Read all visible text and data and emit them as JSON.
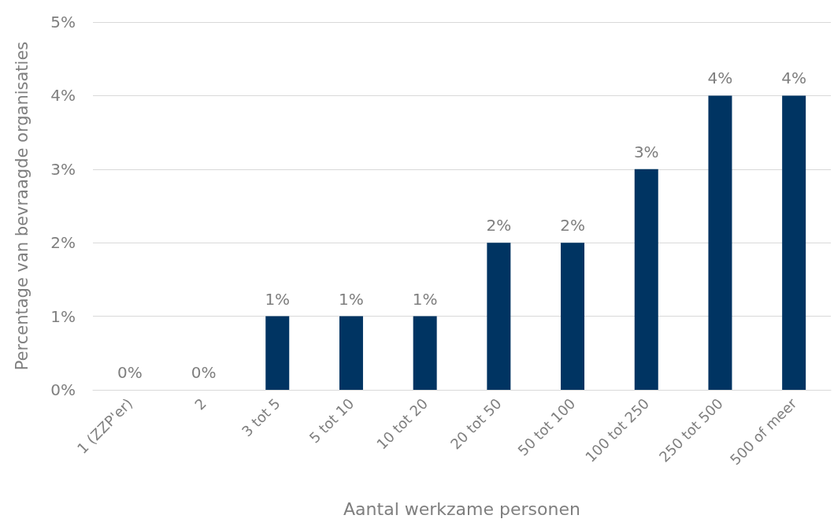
{
  "chart_data": {
    "type": "bar",
    "xlabel": "Aantal werkzame personen",
    "ylabel": "Percentage van bevraagde organisaties",
    "categories": [
      "1 (ZZP'er)",
      "2",
      "3 tot 5",
      "5 tot 10",
      "10 tot 20",
      "20 tot 50",
      "50 tot 100",
      "100 tot 250",
      "250 tot 500",
      "500 of meer"
    ],
    "values": [
      0,
      0,
      1,
      1,
      1,
      2,
      2,
      3,
      4,
      4
    ],
    "value_labels": [
      "0%",
      "0%",
      "1%",
      "1%",
      "1%",
      "2%",
      "2%",
      "3%",
      "4%",
      "4%"
    ],
    "color": "#003462",
    "ylim": [
      0,
      5
    ],
    "yticks": [
      {
        "value": 0,
        "label": "0%"
      },
      {
        "value": 1,
        "label": "1%"
      },
      {
        "value": 2,
        "label": "2%"
      },
      {
        "value": 3,
        "label": "3%"
      },
      {
        "value": 4,
        "label": "4%"
      },
      {
        "value": 5,
        "label": "5%"
      }
    ],
    "grid": "y"
  }
}
